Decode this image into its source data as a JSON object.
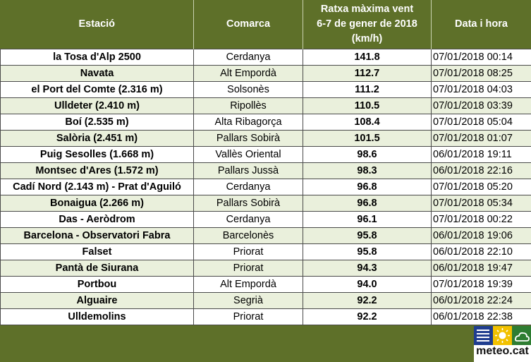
{
  "header": {
    "station": "Estació",
    "region": "Comarca",
    "gust_line1": "Ratxa màxima vent",
    "gust_line2": "6-7 de gener de 2018",
    "gust_line3": "(km/h)",
    "datetime": "Data i hora"
  },
  "rows": [
    {
      "station": "la Tosa d'Alp 2500",
      "region": "Cerdanya",
      "gust": "141.8",
      "datetime": "07/01/2018 00:14"
    },
    {
      "station": "Navata",
      "region": "Alt Empordà",
      "gust": "112.7",
      "datetime": "07/01/2018 08:25"
    },
    {
      "station": "el Port del Comte (2.316 m)",
      "region": "Solsonès",
      "gust": "111.2",
      "datetime": "07/01/2018 04:03"
    },
    {
      "station": "Ulldeter (2.410 m)",
      "region": "Ripollès",
      "gust": "110.5",
      "datetime": "07/01/2018 03:39"
    },
    {
      "station": "Boí (2.535 m)",
      "region": "Alta Ribagorça",
      "gust": "108.4",
      "datetime": "07/01/2018 05:04"
    },
    {
      "station": "Salòria (2.451 m)",
      "region": "Pallars Sobirà",
      "gust": "101.5",
      "datetime": "07/01/2018 01:07"
    },
    {
      "station": "Puig Sesolles (1.668 m)",
      "region": "Vallès Oriental",
      "gust": "98.6",
      "datetime": "06/01/2018 19:11"
    },
    {
      "station": "Montsec d'Ares (1.572 m)",
      "region": "Pallars Jussà",
      "gust": "98.3",
      "datetime": "06/01/2018 22:16"
    },
    {
      "station": "Cadí Nord (2.143 m) - Prat d'Aguiló",
      "region": "Cerdanya",
      "gust": "96.8",
      "datetime": "07/01/2018 05:20"
    },
    {
      "station": "Bonaigua (2.266 m)",
      "region": "Pallars Sobirà",
      "gust": "96.8",
      "datetime": "07/01/2018 05:34"
    },
    {
      "station": "Das - Aeròdrom",
      "region": "Cerdanya",
      "gust": "96.1",
      "datetime": "07/01/2018 00:22"
    },
    {
      "station": "Barcelona - Observatori Fabra",
      "region": "Barcelonès",
      "gust": "95.8",
      "datetime": "06/01/2018 19:06"
    },
    {
      "station": "Falset",
      "region": "Priorat",
      "gust": "95.8",
      "datetime": "06/01/2018 22:10"
    },
    {
      "station": "Pantà de Siurana",
      "region": "Priorat",
      "gust": "94.3",
      "datetime": "06/01/2018 19:47"
    },
    {
      "station": "Portbou",
      "region": "Alt Empordà",
      "gust": "94.0",
      "datetime": "07/01/2018 19:39"
    },
    {
      "station": "Alguaire",
      "region": "Segrià",
      "gust": "92.2",
      "datetime": "06/01/2018 22:24"
    },
    {
      "station": "Ulldemolins",
      "region": "Priorat",
      "gust": "92.2",
      "datetime": "06/01/2018 22:38"
    }
  ],
  "logo": {
    "text": "meteo.cat",
    "icons": [
      "wind-lines-icon",
      "sun-icon",
      "cloud-icon"
    ]
  },
  "colors": {
    "header_bg": "#5e7029",
    "row_alt": "#eaf0dc",
    "row_plain": "#ffffff",
    "logo_blue": "#1f3d8f",
    "logo_yellow": "#f2c100",
    "logo_green": "#2e7d32"
  }
}
